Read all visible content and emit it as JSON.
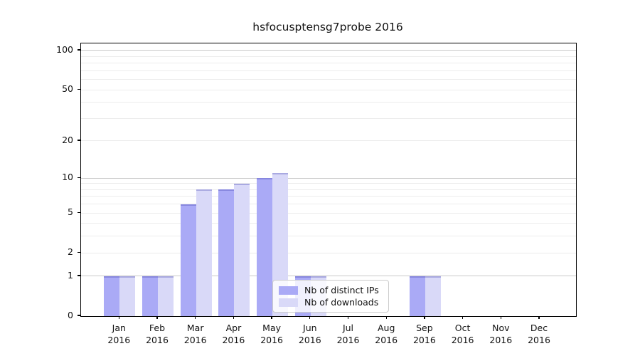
{
  "chart_data": {
    "type": "bar",
    "title": "hsfocusptensg7probe 2016",
    "categories": [
      "Jan",
      "Feb",
      "Mar",
      "Apr",
      "May",
      "Jun",
      "Jul",
      "Aug",
      "Sep",
      "Oct",
      "Nov",
      "Dec"
    ],
    "category_year_label": "2016",
    "series": [
      {
        "name": "Nb of distinct IPs",
        "key": "distinct-ips",
        "color": "#aaaaf6",
        "values": [
          1,
          1,
          6,
          8,
          10,
          1,
          0,
          0,
          1,
          0,
          0,
          0
        ]
      },
      {
        "name": "Nb of downloads",
        "key": "downloads",
        "color": "#d9d9f8",
        "values": [
          1,
          1,
          8,
          9,
          11,
          1,
          0,
          0,
          1,
          0,
          0,
          0
        ]
      }
    ],
    "xlabel": "",
    "ylabel": "",
    "y_scale": "log10(1+v)",
    "ylim": [
      0,
      113
    ],
    "y_tick_labels": [
      100,
      50,
      20,
      10,
      5,
      2,
      1,
      0
    ],
    "y_major_gridlines": [
      1,
      10,
      100
    ],
    "y_minor_gridlines": [
      2,
      3,
      4,
      5,
      6,
      7,
      8,
      9,
      20,
      30,
      40,
      50,
      60,
      70,
      80,
      90
    ],
    "grid": "on",
    "legend_position": "lower-center",
    "colors": {
      "major_grid": "#c9c9c9",
      "minor_grid": "#ececec",
      "axis": "#000000",
      "background": "#ffffff"
    }
  }
}
